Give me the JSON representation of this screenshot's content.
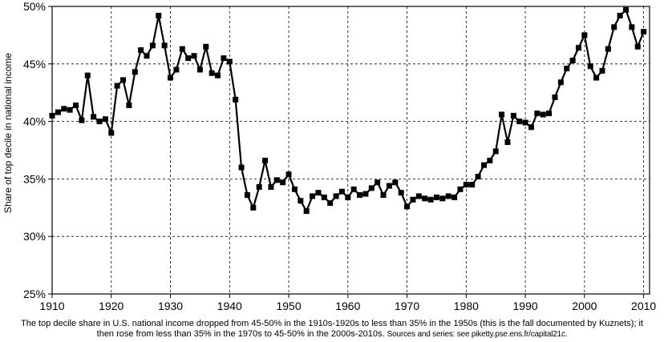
{
  "caption": {
    "main": "The top decile share in U.S. national income dropped from 45-50% in the 1910s-1920s to less than 35% in the 1950s (this is the fall documented by Kuznets); it then rose from less than 35% in the 1970s to 45-50% in the 2000s-2010s.",
    "source": "Sources and series: see piketty.pse.ens.fr/capital21c."
  },
  "chart_data": {
    "type": "line",
    "title": "",
    "xlabel": "",
    "ylabel": "Share of top decile in national income",
    "xlim": [
      1910,
      2011
    ],
    "ylim": [
      0.25,
      0.5
    ],
    "x_ticks": [
      1910,
      1920,
      1930,
      1940,
      1950,
      1960,
      1970,
      1980,
      1990,
      2000,
      2010
    ],
    "x_tick_labels": [
      "1910",
      "1920",
      "1930",
      "1940",
      "1950",
      "1960",
      "1970",
      "1980",
      "1990",
      "2000",
      "2010"
    ],
    "y_ticks": [
      0.25,
      0.3,
      0.35,
      0.4,
      0.45,
      0.5
    ],
    "y_tick_labels": [
      "25%",
      "30%",
      "35%",
      "40%",
      "45%",
      "50%"
    ],
    "grid": true,
    "legend": "none",
    "series": [
      {
        "color": "#000000",
        "marker": "square",
        "points": [
          [
            1910,
            0.405
          ],
          [
            1911,
            0.408
          ],
          [
            1912,
            0.411
          ],
          [
            1913,
            0.41
          ],
          [
            1914,
            0.414
          ],
          [
            1915,
            0.401
          ],
          [
            1916,
            0.44
          ],
          [
            1917,
            0.404
          ],
          [
            1918,
            0.4
          ],
          [
            1919,
            0.402
          ],
          [
            1920,
            0.39
          ],
          [
            1921,
            0.431
          ],
          [
            1922,
            0.436
          ],
          [
            1923,
            0.414
          ],
          [
            1924,
            0.443
          ],
          [
            1925,
            0.462
          ],
          [
            1926,
            0.457
          ],
          [
            1927,
            0.466
          ],
          [
            1928,
            0.492
          ],
          [
            1929,
            0.466
          ],
          [
            1930,
            0.438
          ],
          [
            1931,
            0.445
          ],
          [
            1932,
            0.463
          ],
          [
            1933,
            0.455
          ],
          [
            1934,
            0.457
          ],
          [
            1935,
            0.445
          ],
          [
            1936,
            0.465
          ],
          [
            1937,
            0.442
          ],
          [
            1938,
            0.44
          ],
          [
            1939,
            0.455
          ],
          [
            1940,
            0.452
          ],
          [
            1941,
            0.419
          ],
          [
            1942,
            0.36
          ],
          [
            1943,
            0.336
          ],
          [
            1944,
            0.325
          ],
          [
            1945,
            0.343
          ],
          [
            1946,
            0.366
          ],
          [
            1947,
            0.343
          ],
          [
            1948,
            0.349
          ],
          [
            1949,
            0.347
          ],
          [
            1950,
            0.354
          ],
          [
            1951,
            0.341
          ],
          [
            1952,
            0.331
          ],
          [
            1953,
            0.322
          ],
          [
            1954,
            0.335
          ],
          [
            1955,
            0.338
          ],
          [
            1956,
            0.334
          ],
          [
            1957,
            0.329
          ],
          [
            1958,
            0.335
          ],
          [
            1959,
            0.339
          ],
          [
            1960,
            0.334
          ],
          [
            1961,
            0.341
          ],
          [
            1962,
            0.336
          ],
          [
            1963,
            0.337
          ],
          [
            1964,
            0.342
          ],
          [
            1965,
            0.347
          ],
          [
            1966,
            0.336
          ],
          [
            1967,
            0.344
          ],
          [
            1968,
            0.347
          ],
          [
            1969,
            0.338
          ],
          [
            1970,
            0.326
          ],
          [
            1971,
            0.332
          ],
          [
            1972,
            0.335
          ],
          [
            1973,
            0.333
          ],
          [
            1974,
            0.332
          ],
          [
            1975,
            0.334
          ],
          [
            1976,
            0.333
          ],
          [
            1977,
            0.335
          ],
          [
            1978,
            0.334
          ],
          [
            1979,
            0.341
          ],
          [
            1980,
            0.345
          ],
          [
            1981,
            0.345
          ],
          [
            1982,
            0.352
          ],
          [
            1983,
            0.362
          ],
          [
            1984,
            0.366
          ],
          [
            1985,
            0.374
          ],
          [
            1986,
            0.406
          ],
          [
            1987,
            0.382
          ],
          [
            1988,
            0.405
          ],
          [
            1989,
            0.4
          ],
          [
            1990,
            0.399
          ],
          [
            1991,
            0.395
          ],
          [
            1992,
            0.407
          ],
          [
            1993,
            0.406
          ],
          [
            1994,
            0.407
          ],
          [
            1995,
            0.421
          ],
          [
            1996,
            0.434
          ],
          [
            1997,
            0.446
          ],
          [
            1998,
            0.453
          ],
          [
            1999,
            0.464
          ],
          [
            2000,
            0.475
          ],
          [
            2001,
            0.448
          ],
          [
            2002,
            0.438
          ],
          [
            2003,
            0.444
          ],
          [
            2004,
            0.463
          ],
          [
            2005,
            0.482
          ],
          [
            2006,
            0.492
          ],
          [
            2007,
            0.497
          ],
          [
            2008,
            0.482
          ],
          [
            2009,
            0.465
          ],
          [
            2010,
            0.478
          ]
        ]
      }
    ]
  }
}
